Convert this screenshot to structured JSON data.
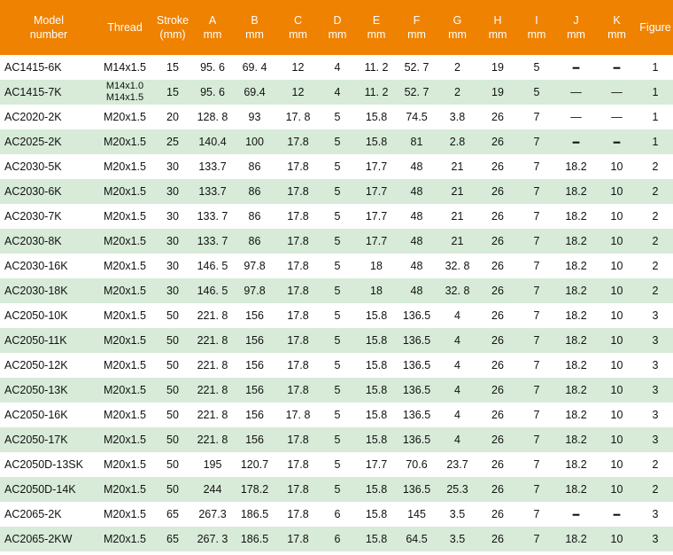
{
  "headers": [
    {
      "line1": "Model",
      "line2": "number"
    },
    {
      "line1": "Thread",
      "line2": ""
    },
    {
      "line1": "Stroke",
      "line2": "(mm)"
    },
    {
      "line1": "A",
      "line2": "mm"
    },
    {
      "line1": "B",
      "line2": "mm"
    },
    {
      "line1": "C",
      "line2": "mm"
    },
    {
      "line1": "D",
      "line2": "mm"
    },
    {
      "line1": "E",
      "line2": "mm"
    },
    {
      "line1": "F",
      "line2": "mm"
    },
    {
      "line1": "G",
      "line2": "mm"
    },
    {
      "line1": "H",
      "line2": "mm"
    },
    {
      "line1": "I",
      "line2": "mm"
    },
    {
      "line1": "J",
      "line2": "mm"
    },
    {
      "line1": "K",
      "line2": "mm"
    },
    {
      "line1": "Figure",
      "line2": ""
    }
  ],
  "rows": [
    [
      "AC1415-6K",
      "M14x1.5",
      "15",
      "95. 6",
      "69. 4",
      "12",
      "4",
      "11. 2",
      "52. 7",
      "2",
      "19",
      "5",
      "━",
      "━",
      "1"
    ],
    [
      "AC1415-7K",
      "M14x1.0\nM14x1.5",
      "15",
      "95. 6",
      "69.4",
      "12",
      "4",
      "11. 2",
      "52. 7",
      "2",
      "19",
      "5",
      "—",
      "—",
      "1"
    ],
    [
      "AC2020-2K",
      "M20x1.5",
      "20",
      "128. 8",
      "93",
      "17. 8",
      "5",
      "15.8",
      "74.5",
      "3.8",
      "26",
      "7",
      "—",
      "—",
      "1"
    ],
    [
      "AC2025-2K",
      "M20x1.5",
      "25",
      "140.4",
      "100",
      "17.8",
      "5",
      "15.8",
      "81",
      "2.8",
      "26",
      "7",
      "━",
      "━",
      "1"
    ],
    [
      "AC2030-5K",
      "M20x1.5",
      "30",
      "133.7",
      "86",
      "17.8",
      "5",
      "17.7",
      "48",
      "21",
      "26",
      "7",
      "18.2",
      "10",
      "2"
    ],
    [
      "AC2030-6K",
      "M20x1.5",
      "30",
      "133.7",
      "86",
      "17.8",
      "5",
      "17.7",
      "48",
      "21",
      "26",
      "7",
      "18.2",
      "10",
      "2"
    ],
    [
      "AC2030-7K",
      "M20x1.5",
      "30",
      "133. 7",
      "86",
      "17.8",
      "5",
      "17.7",
      "48",
      "21",
      "26",
      "7",
      "18.2",
      "10",
      "2"
    ],
    [
      "AC2030-8K",
      "M20x1.5",
      "30",
      "133. 7",
      "86",
      "17.8",
      "5",
      "17.7",
      "48",
      "21",
      "26",
      "7",
      "18.2",
      "10",
      "2"
    ],
    [
      "AC2030-16K",
      "M20x1.5",
      "30",
      "146. 5",
      "97.8",
      "17.8",
      "5",
      "18",
      "48",
      "32. 8",
      "26",
      "7",
      "18.2",
      "10",
      "2"
    ],
    [
      "AC2030-18K",
      "M20x1.5",
      "30",
      "146. 5",
      "97.8",
      "17.8",
      "5",
      "18",
      "48",
      "32. 8",
      "26",
      "7",
      "18.2",
      "10",
      "2"
    ],
    [
      "AC2050-10K",
      "M20x1.5",
      "50",
      "221. 8",
      "156",
      "17.8",
      "5",
      "15.8",
      "136.5",
      "4",
      "26",
      "7",
      "18.2",
      "10",
      "3"
    ],
    [
      "AC2050-11K",
      "M20x1.5",
      "50",
      "221. 8",
      "156",
      "17.8",
      "5",
      "15.8",
      "136.5",
      "4",
      "26",
      "7",
      "18.2",
      "10",
      "3"
    ],
    [
      "AC2050-12K",
      "M20x1.5",
      "50",
      "221. 8",
      "156",
      "17.8",
      "5",
      "15.8",
      "136.5",
      "4",
      "26",
      "7",
      "18.2",
      "10",
      "3"
    ],
    [
      "AC2050-13K",
      "M20x1.5",
      "50",
      "221. 8",
      "156",
      "17.8",
      "5",
      "15.8",
      "136.5",
      "4",
      "26",
      "7",
      "18.2",
      "10",
      "3"
    ],
    [
      "AC2050-16K",
      "M20x1.5",
      "50",
      "221. 8",
      "156",
      "17. 8",
      "5",
      "15.8",
      "136.5",
      "4",
      "26",
      "7",
      "18.2",
      "10",
      "3"
    ],
    [
      "AC2050-17K",
      "M20x1.5",
      "50",
      "221. 8",
      "156",
      "17.8",
      "5",
      "15.8",
      "136.5",
      "4",
      "26",
      "7",
      "18.2",
      "10",
      "3"
    ],
    [
      "AC2050D-13SK",
      "M20x1.5",
      "50",
      "195",
      "120.7",
      "17.8",
      "5",
      "17.7",
      "70.6",
      "23.7",
      "26",
      "7",
      "18.2",
      "10",
      "2"
    ],
    [
      "AC2050D-14K",
      "M20x1.5",
      "50",
      "244",
      "178.2",
      "17.8",
      "5",
      "15.8",
      "136.5",
      "25.3",
      "26",
      "7",
      "18.2",
      "10",
      "2"
    ],
    [
      "AC2065-2K",
      "M20x1.5",
      "65",
      "267.3",
      "186.5",
      "17.8",
      "6",
      "15.8",
      "145",
      "3.5",
      "26",
      "7",
      "━",
      "━",
      "3"
    ],
    [
      "AC2065-2KW",
      "M20x1.5",
      "65",
      "267. 3",
      "186.5",
      "17.8",
      "6",
      "15.8",
      "64.5",
      "3.5",
      "26",
      "7",
      "18.2",
      "10",
      "3"
    ]
  ],
  "colors": {
    "header_bg": "#ef8200",
    "alt_row_bg": "#d7ebd8"
  }
}
